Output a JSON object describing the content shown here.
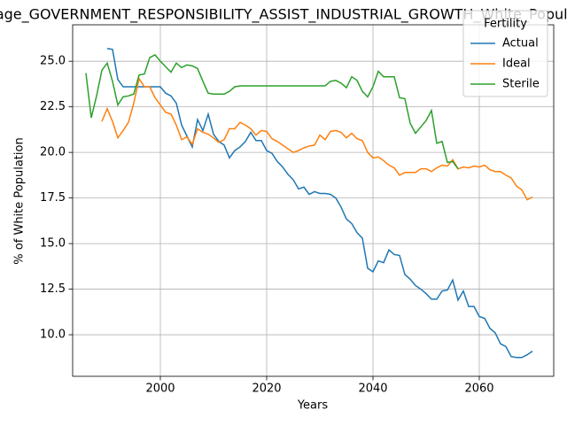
{
  "chart_data": {
    "type": "line",
    "title": "Average_GOVERNMENT_RESPONSIBILITY_ASSIST_INDUSTRIAL_GROWTH_White_Population",
    "xlabel": "Years",
    "ylabel": "% of White Population",
    "x": [
      1986,
      1987,
      1988,
      1989,
      1990,
      1991,
      1992,
      1993,
      1994,
      1995,
      1996,
      1997,
      1998,
      1999,
      2000,
      2001,
      2002,
      2003,
      2004,
      2005,
      2006,
      2007,
      2008,
      2009,
      2010,
      2011,
      2012,
      2013,
      2014,
      2015,
      2016,
      2017,
      2018,
      2019,
      2020,
      2021,
      2022,
      2023,
      2024,
      2025,
      2026,
      2027,
      2028,
      2029,
      2030,
      2031,
      2032,
      2033,
      2034,
      2035,
      2036,
      2037,
      2038,
      2039,
      2040,
      2041,
      2042,
      2043,
      2044,
      2045,
      2046,
      2047,
      2048,
      2049,
      2050,
      2051,
      2052,
      2053,
      2054,
      2055,
      2056,
      2057,
      2058,
      2059,
      2060,
      2061,
      2062,
      2063,
      2064,
      2065,
      2066,
      2067,
      2068,
      2069,
      2070
    ],
    "series": [
      {
        "name": "Actual",
        "color": "#1f77b4",
        "values": [
          null,
          null,
          null,
          null,
          25.7,
          25.65,
          24.0,
          23.6,
          23.6,
          23.6,
          23.6,
          23.6,
          23.6,
          23.6,
          23.6,
          23.25,
          23.1,
          22.7,
          21.5,
          20.9,
          20.3,
          21.8,
          21.2,
          22.1,
          21.0,
          20.6,
          20.4,
          19.7,
          20.1,
          20.3,
          20.6,
          21.1,
          20.65,
          20.65,
          20.1,
          19.95,
          19.5,
          19.2,
          18.8,
          18.5,
          18.0,
          18.1,
          17.7,
          17.85,
          17.75,
          17.75,
          17.7,
          17.5,
          17.0,
          16.35,
          16.1,
          15.6,
          15.3,
          13.65,
          13.45,
          14.05,
          13.95,
          14.65,
          14.4,
          14.35,
          13.3,
          13.05,
          12.7,
          12.5,
          12.25,
          11.95,
          11.95,
          12.4,
          12.45,
          13.0,
          11.9,
          12.4,
          11.55,
          11.55,
          11.0,
          10.9,
          10.35,
          10.1,
          9.5,
          9.35,
          8.8,
          8.75,
          8.75,
          8.9,
          9.1
        ]
      },
      {
        "name": "Ideal",
        "color": "#ff7f0e",
        "values": [
          null,
          null,
          null,
          21.7,
          22.4,
          21.7,
          20.8,
          21.2,
          21.65,
          22.7,
          24.05,
          23.6,
          23.6,
          23.0,
          22.6,
          22.2,
          22.1,
          21.5,
          20.7,
          20.85,
          20.45,
          21.3,
          21.1,
          21.0,
          20.8,
          20.55,
          20.7,
          21.3,
          21.3,
          21.65,
          21.5,
          21.3,
          20.95,
          21.2,
          21.15,
          20.75,
          20.6,
          20.4,
          20.2,
          20.0,
          20.1,
          20.25,
          20.35,
          20.4,
          20.95,
          20.7,
          21.15,
          21.2,
          21.1,
          20.8,
          21.05,
          20.75,
          20.65,
          20.0,
          19.7,
          19.75,
          19.55,
          19.3,
          19.15,
          18.75,
          18.9,
          18.9,
          18.9,
          19.1,
          19.1,
          18.95,
          19.15,
          19.3,
          19.25,
          19.6,
          19.1,
          19.2,
          19.15,
          19.25,
          19.2,
          19.3,
          19.05,
          18.95,
          18.95,
          18.75,
          18.6,
          18.15,
          17.95,
          17.4,
          17.55
        ]
      },
      {
        "name": "Sterile",
        "color": "#2ca02c",
        "values": [
          24.35,
          21.9,
          23.1,
          24.5,
          24.9,
          23.9,
          22.6,
          23.05,
          23.1,
          23.2,
          24.25,
          24.3,
          25.2,
          25.35,
          25.0,
          24.7,
          24.4,
          24.9,
          24.65,
          24.8,
          24.75,
          24.6,
          23.9,
          23.25,
          23.2,
          23.2,
          23.2,
          23.35,
          23.6,
          23.65,
          23.65,
          23.65,
          23.65,
          23.65,
          23.65,
          23.65,
          23.65,
          23.65,
          23.65,
          23.65,
          23.65,
          23.65,
          23.65,
          23.65,
          23.65,
          23.65,
          23.9,
          23.95,
          23.8,
          23.55,
          24.15,
          23.95,
          23.35,
          23.05,
          23.6,
          24.45,
          24.15,
          24.15,
          24.15,
          23.0,
          22.95,
          21.6,
          21.05,
          21.4,
          21.75,
          22.3,
          20.5,
          20.6,
          19.45,
          19.5,
          19.1,
          null,
          null,
          null,
          null,
          null,
          null,
          null,
          null,
          null,
          null,
          null,
          null,
          null,
          null
        ]
      }
    ],
    "xlim": [
      1983.5,
      2074
    ],
    "ylim": [
      7.72,
      27.0
    ],
    "xticks": [
      2000,
      2020,
      2040,
      2060
    ],
    "yticks": [
      {
        "value": 10,
        "label": "10.0"
      },
      {
        "value": 12.5,
        "label": "12.5"
      },
      {
        "value": 15,
        "label": "15.0"
      },
      {
        "value": 17.5,
        "label": "17.5"
      },
      {
        "value": 20,
        "label": "20.0"
      },
      {
        "value": 22.5,
        "label": "22.5"
      },
      {
        "value": 25,
        "label": "25.0"
      }
    ],
    "grid": true,
    "legend_title": "Fertility",
    "legend": "upper right"
  }
}
